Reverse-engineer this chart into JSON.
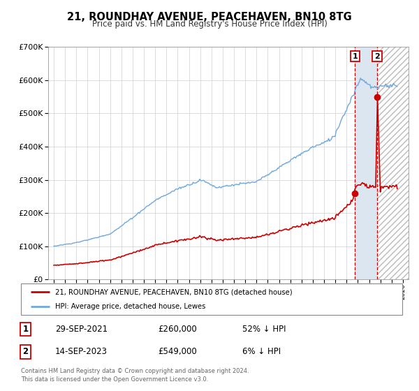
{
  "title": "21, ROUNDHAY AVENUE, PEACEHAVEN, BN10 8TG",
  "subtitle": "Price paid vs. HM Land Registry's House Price Index (HPI)",
  "legend_line1": "21, ROUNDHAY AVENUE, PEACEHAVEN, BN10 8TG (detached house)",
  "legend_line2": "HPI: Average price, detached house, Lewes",
  "sale1_date": "29-SEP-2021",
  "sale1_price": "£260,000",
  "sale1_pct": "52% ↓ HPI",
  "sale1_year": 2021.75,
  "sale1_value": 260000,
  "sale2_date": "14-SEP-2023",
  "sale2_price": "£549,000",
  "sale2_pct": "6% ↓ HPI",
  "sale2_year": 2023.71,
  "sale2_value": 549000,
  "hpi_color": "#6fa8dc",
  "price_color": "#cc0000",
  "shade_color": "#dce6f1",
  "hatch_color": "#cccccc",
  "footer1": "Contains HM Land Registry data © Crown copyright and database right 2024.",
  "footer2": "This data is licensed under the Open Government Licence v3.0.",
  "ylim_max": 700000,
  "xlim_min": 1994.5,
  "xlim_max": 2026.5
}
